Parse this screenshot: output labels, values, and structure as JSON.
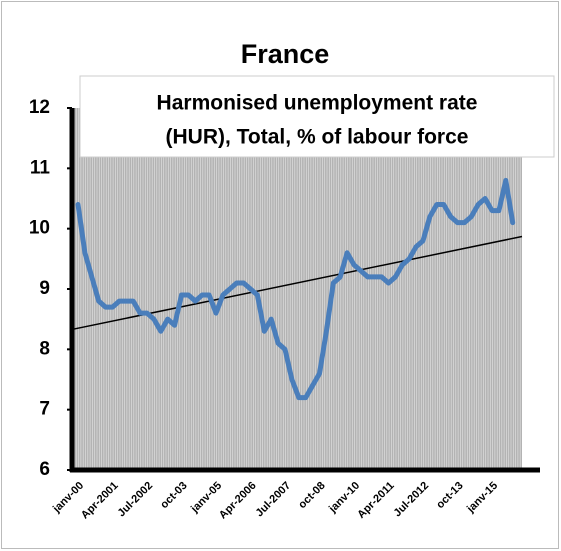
{
  "chart_data": {
    "type": "line",
    "title": "France",
    "subtitle": [
      "Harmonised unemployment rate",
      "(HUR), Total, % of labour force"
    ],
    "categories": [
      "janv-00",
      null,
      null,
      null,
      null,
      "Apr-2001",
      null,
      null,
      null,
      null,
      "Jul-2002",
      null,
      null,
      null,
      null,
      "oct-03",
      null,
      null,
      null,
      null,
      "janv-05",
      null,
      null,
      null,
      null,
      "Apr-2006",
      null,
      null,
      null,
      null,
      "Jul-2007",
      null,
      null,
      null,
      null,
      "oct-08",
      null,
      null,
      null,
      null,
      "janv-10",
      null,
      null,
      null,
      null,
      "Apr-2011",
      null,
      null,
      null,
      null,
      "Jul-2012",
      null,
      null,
      null,
      null,
      "oct-13",
      null,
      null,
      null,
      null,
      "janv-15",
      null,
      null,
      null
    ],
    "series": [
      {
        "color": "#4a7ebb",
        "values": [
          10.4,
          9.6,
          9.2,
          8.8,
          8.7,
          8.7,
          8.8,
          8.8,
          8.8,
          8.6,
          8.6,
          8.5,
          8.3,
          8.5,
          8.4,
          8.9,
          8.9,
          8.8,
          8.9,
          8.9,
          8.6,
          8.9,
          9.0,
          9.1,
          9.1,
          9.0,
          8.9,
          8.3,
          8.5,
          8.1,
          8.0,
          7.5,
          7.2,
          7.2,
          7.4,
          7.6,
          8.3,
          9.1,
          9.2,
          9.6,
          9.4,
          9.3,
          9.2,
          9.2,
          9.2,
          9.1,
          9.2,
          9.4,
          9.5,
          9.7,
          9.8,
          10.2,
          10.4,
          10.4,
          10.2,
          10.1,
          10.1,
          10.2,
          10.4,
          10.5,
          10.3,
          10.3,
          10.8,
          10.1
        ]
      }
    ],
    "trend_line": [
      8.33,
      9.87
    ],
    "ylim": [
      6,
      12
    ],
    "yticks": [
      6,
      7,
      8,
      9,
      10,
      11,
      12
    ],
    "grid": true
  }
}
